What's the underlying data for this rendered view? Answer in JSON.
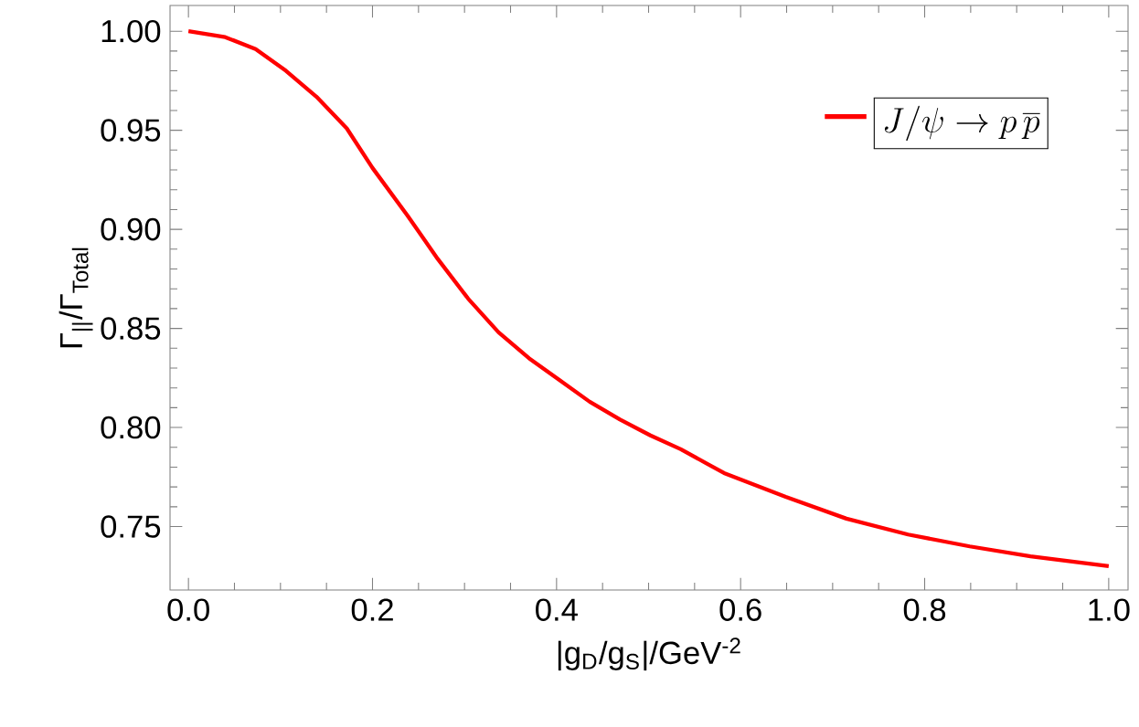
{
  "chart_data": {
    "type": "line",
    "xlabel": "|g$_{D}$/g$_{S}$|/GeV$^{-2}$",
    "ylabel": "Γ$_{||}$/Γ$_{Total}$",
    "x": [
      0,
      0.04,
      0.073,
      0.106,
      0.139,
      0.172,
      0.2,
      0.238,
      0.271,
      0.304,
      0.337,
      0.37,
      0.403,
      0.436,
      0.469,
      0.502,
      0.535,
      0.582,
      0.649,
      0.715,
      0.782,
      0.849,
      0.915,
      1.0
    ],
    "series": [
      {
        "name": "J/\\psi \\to p\\,\\overline{p}",
        "color": "#ff0000",
        "values": [
          1.0,
          0.997,
          0.991,
          0.98,
          0.967,
          0.951,
          0.931,
          0.907,
          0.885,
          0.865,
          0.848,
          0.835,
          0.824,
          0.813,
          0.804,
          0.796,
          0.789,
          0.777,
          0.765,
          0.754,
          0.746,
          0.74,
          0.735,
          0.73
        ]
      }
    ],
    "xlim": [
      -0.02,
      1.021
    ],
    "ylim": [
      0.718,
      1.013
    ],
    "xticks": [
      {
        "value": 0,
        "label": "0.0"
      },
      0.2,
      0.4,
      0.6,
      0.8,
      {
        "value": 1,
        "label": "1.0"
      }
    ],
    "yticks": [
      0.75,
      {
        "value": 0.8,
        "label": "0.80"
      },
      0.85,
      {
        "value": 0.9,
        "label": "0.90"
      },
      0.95,
      {
        "value": 1,
        "label": "1.00"
      }
    ],
    "legend": "top right",
    "grid": false,
    "marker": "none",
    "line_style": "solid"
  }
}
